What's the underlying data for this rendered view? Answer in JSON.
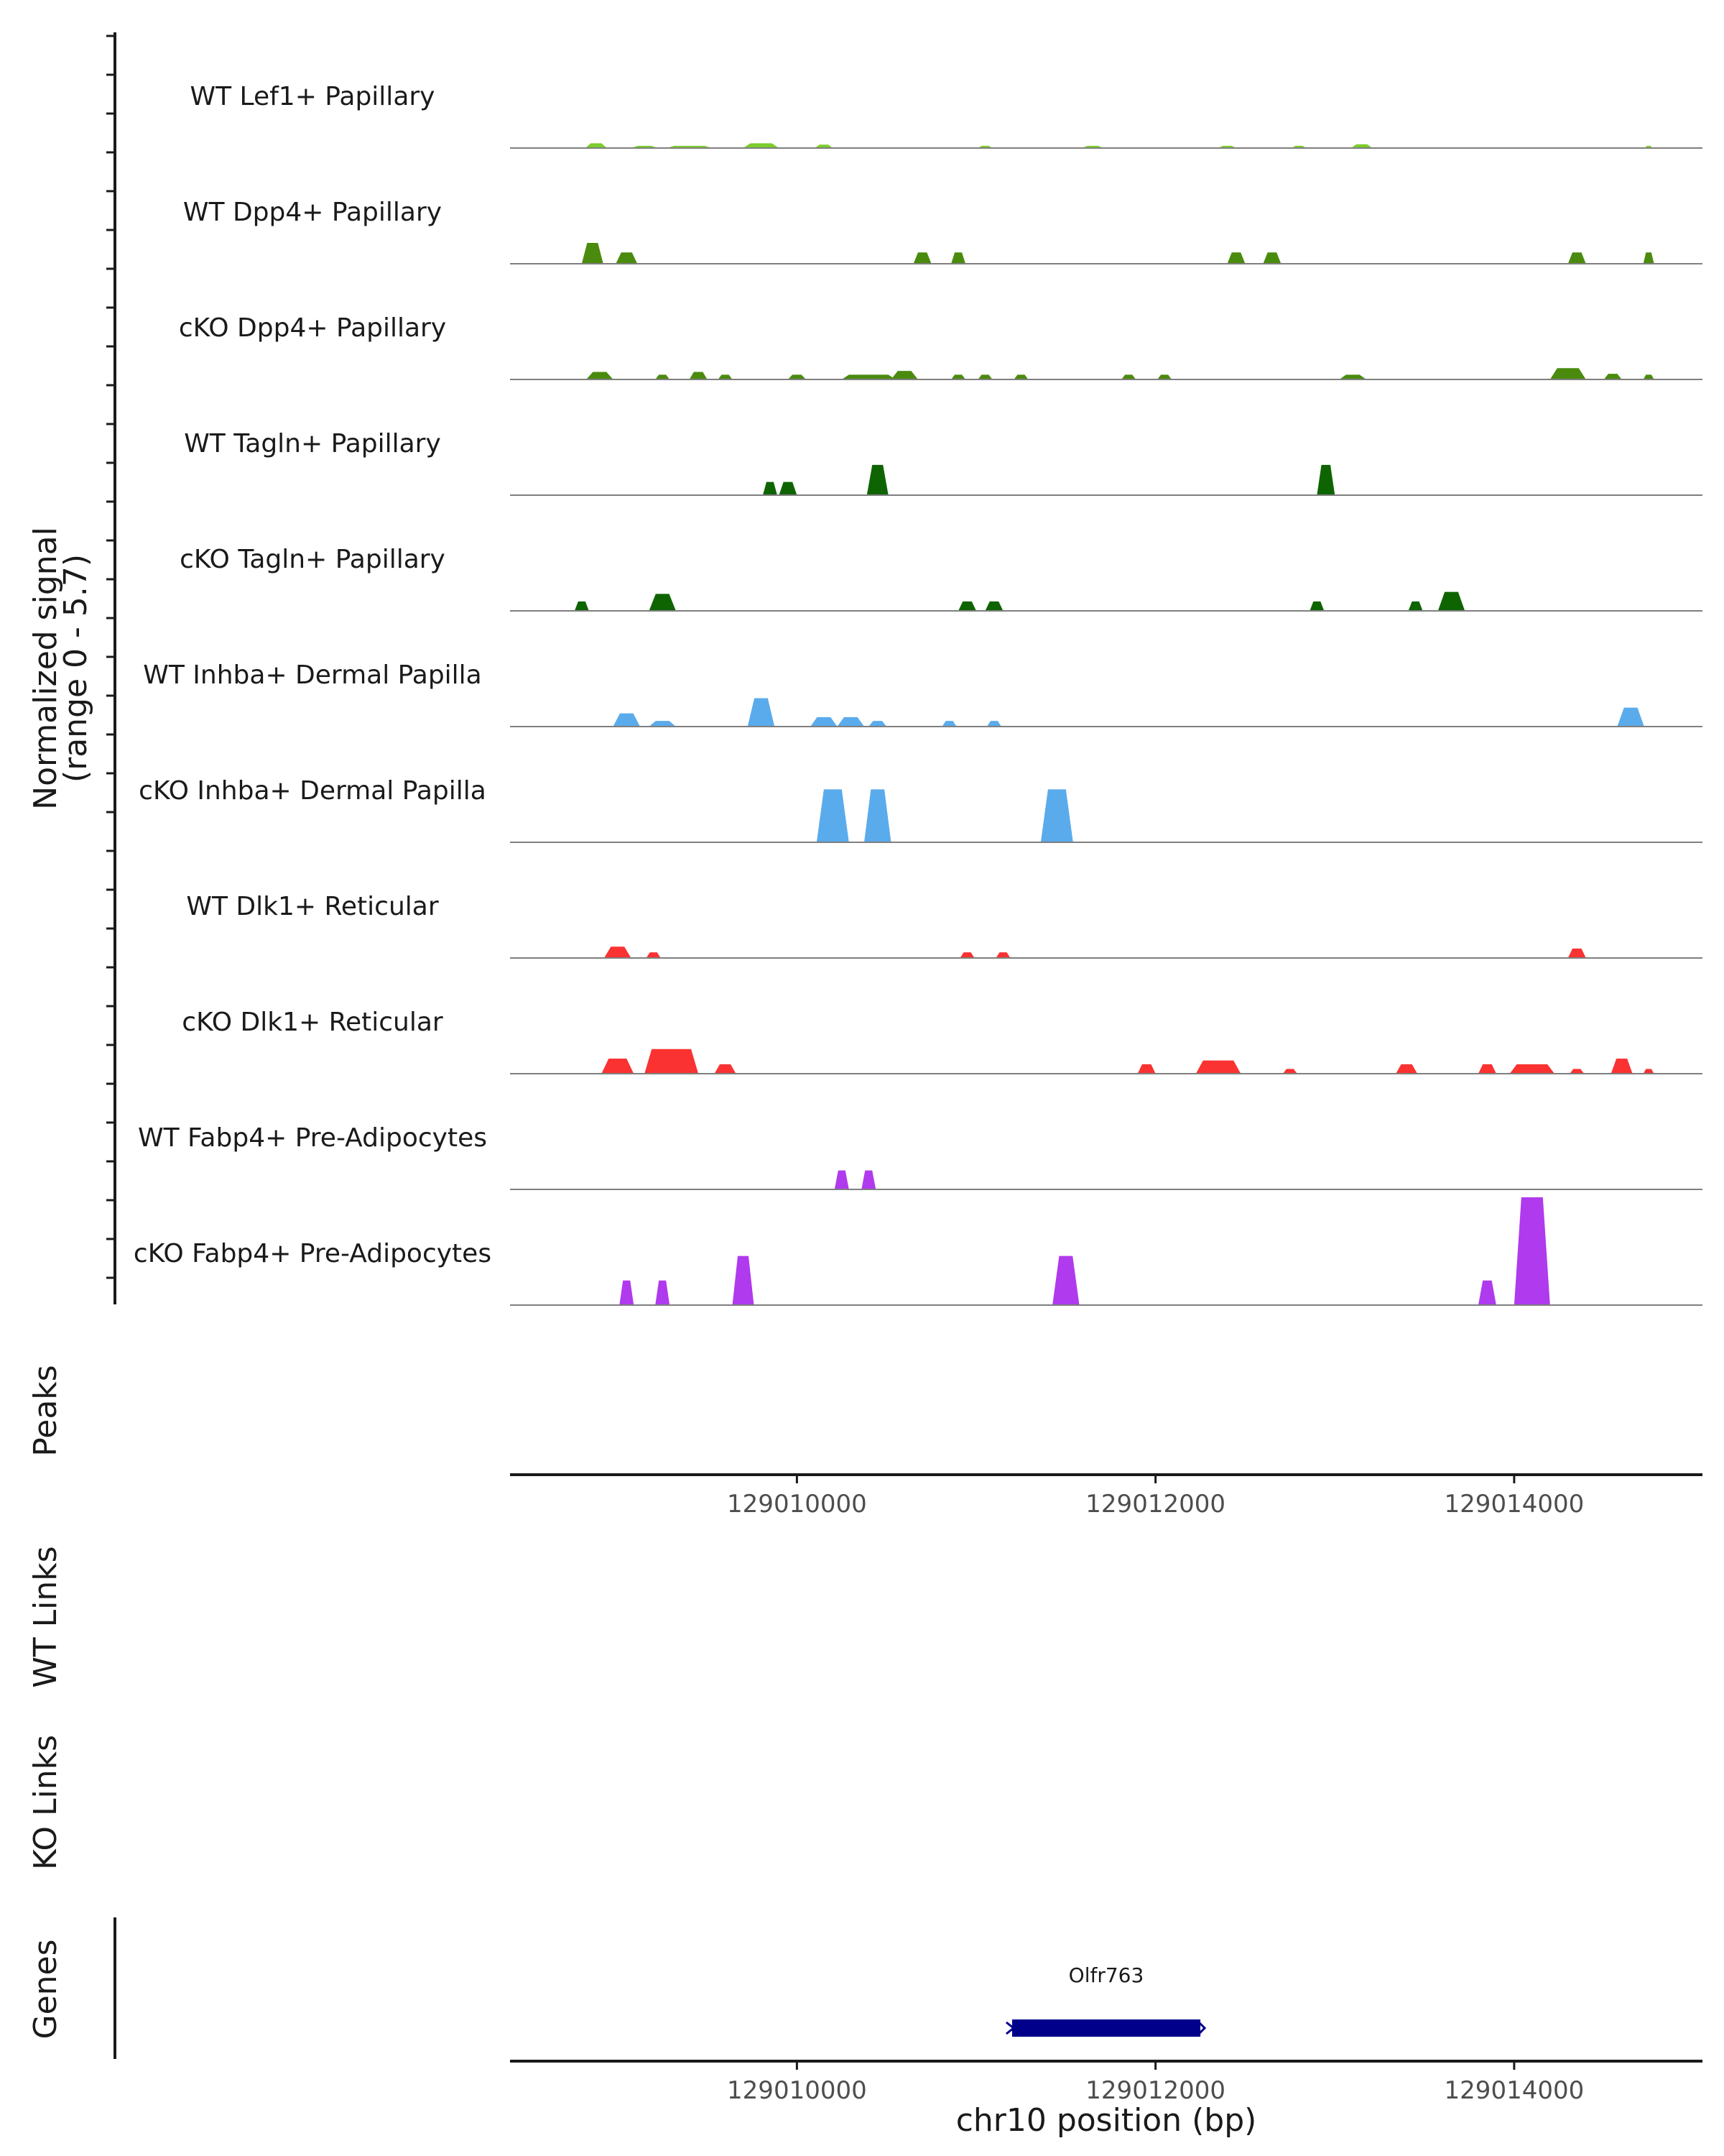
{
  "chart_data": {
    "type": "area",
    "description_free": true,
    "region": {
      "chrom": "chr10",
      "start": 129008400,
      "end": 129015050
    },
    "ylabel": "Normalized signal",
    "ylabel_range": "(range 0 - 5.7)",
    "ylim": [
      0,
      5.7
    ],
    "xlabel": "chr10 position (bp)",
    "xticks": [
      129010000,
      129012000,
      129014000
    ],
    "xtick_labels": [
      "129010000",
      "129012000",
      "129014000"
    ],
    "panel_labels": {
      "peaks": "Peaks",
      "wt_links": "WT Links",
      "ko_links": "KO Links",
      "genes": "Genes"
    },
    "tracks": [
      {
        "name": "WT Lef1+ Papillary",
        "color": "#7CCD2B",
        "peaks": [
          [
            129008880,
            120,
            0.25
          ],
          [
            129009150,
            150,
            0.12
          ],
          [
            129009400,
            250,
            0.12
          ],
          [
            129009800,
            200,
            0.25
          ],
          [
            129010150,
            100,
            0.18
          ],
          [
            129011050,
            80,
            0.12
          ],
          [
            129011650,
            120,
            0.12
          ],
          [
            129012400,
            100,
            0.12
          ],
          [
            129012800,
            80,
            0.12
          ],
          [
            129013150,
            120,
            0.2
          ],
          [
            129014750,
            40,
            0.12
          ]
        ]
      },
      {
        "name": "WT Dpp4+ Papillary",
        "color": "#4A8B0E",
        "peaks": [
          [
            129008860,
            120,
            1.1
          ],
          [
            129009050,
            120,
            0.6
          ],
          [
            129010700,
            100,
            0.6
          ],
          [
            129010900,
            80,
            0.6
          ],
          [
            129012450,
            100,
            0.6
          ],
          [
            129012650,
            100,
            0.6
          ],
          [
            129014350,
            100,
            0.6
          ],
          [
            129014750,
            60,
            0.6
          ]
        ]
      },
      {
        "name": "cKO Dpp4+ Papillary",
        "color": "#4A8B0E",
        "peaks": [
          [
            129008900,
            150,
            0.4
          ],
          [
            129009250,
            80,
            0.25
          ],
          [
            129009450,
            100,
            0.4
          ],
          [
            129009600,
            80,
            0.25
          ],
          [
            129010000,
            100,
            0.25
          ],
          [
            129010400,
            300,
            0.25
          ],
          [
            129010600,
            150,
            0.45
          ],
          [
            129010900,
            80,
            0.25
          ],
          [
            129011050,
            80,
            0.25
          ],
          [
            129011250,
            80,
            0.25
          ],
          [
            129011850,
            80,
            0.25
          ],
          [
            129012050,
            80,
            0.25
          ],
          [
            129013100,
            150,
            0.25
          ],
          [
            129014300,
            200,
            0.6
          ],
          [
            129014550,
            100,
            0.3
          ],
          [
            129014750,
            60,
            0.25
          ]
        ]
      },
      {
        "name": "WT Tagln+ Papillary",
        "color": "#0E6400",
        "peaks": [
          [
            129009850,
            80,
            0.7
          ],
          [
            129009950,
            100,
            0.7
          ],
          [
            129010450,
            120,
            1.6
          ],
          [
            129012950,
            100,
            1.6
          ]
        ]
      },
      {
        "name": "cKO Tagln+ Papillary",
        "color": "#0E6400",
        "peaks": [
          [
            129008800,
            80,
            0.5
          ],
          [
            129009250,
            150,
            0.9
          ],
          [
            129010950,
            100,
            0.5
          ],
          [
            129011100,
            100,
            0.5
          ],
          [
            129012900,
            80,
            0.5
          ],
          [
            129013450,
            80,
            0.5
          ],
          [
            129013650,
            150,
            1.0
          ]
        ]
      },
      {
        "name": "WT Inhba+ Dermal Papilla",
        "color": "#5AABEC",
        "peaks": [
          [
            129009050,
            150,
            0.7
          ],
          [
            129009250,
            150,
            0.3
          ],
          [
            129009800,
            150,
            1.5
          ],
          [
            129010150,
            150,
            0.5
          ],
          [
            129010300,
            150,
            0.5
          ],
          [
            129010450,
            100,
            0.3
          ],
          [
            129010850,
            80,
            0.3
          ],
          [
            129011100,
            80,
            0.3
          ],
          [
            129014650,
            150,
            1.0
          ]
        ]
      },
      {
        "name": "cKO Inhba+ Dermal Papilla",
        "color": "#5AABEC",
        "peaks": [
          [
            129010200,
            180,
            2.8
          ],
          [
            129010450,
            150,
            2.8
          ],
          [
            129011450,
            180,
            2.8
          ]
        ]
      },
      {
        "name": "WT Dlk1+ Reticular",
        "color": "#FA3232",
        "peaks": [
          [
            129009000,
            150,
            0.6
          ],
          [
            129009200,
            80,
            0.3
          ],
          [
            129010950,
            80,
            0.3
          ],
          [
            129011150,
            80,
            0.3
          ],
          [
            129014350,
            100,
            0.5
          ]
        ]
      },
      {
        "name": "cKO Dlk1+ Reticular",
        "color": "#FA3232",
        "peaks": [
          [
            129009000,
            180,
            0.8
          ],
          [
            129009300,
            300,
            1.3
          ],
          [
            129009600,
            120,
            0.5
          ],
          [
            129011950,
            100,
            0.5
          ],
          [
            129012350,
            250,
            0.7
          ],
          [
            129012750,
            80,
            0.25
          ],
          [
            129013400,
            120,
            0.5
          ],
          [
            129013850,
            100,
            0.5
          ],
          [
            129014100,
            250,
            0.5
          ],
          [
            129014350,
            80,
            0.25
          ],
          [
            129014600,
            120,
            0.8
          ],
          [
            129014750,
            60,
            0.25
          ]
        ]
      },
      {
        "name": "WT Fabp4+ Pre-Adipocytes",
        "color": "#B03AEE",
        "peaks": [
          [
            129010250,
            80,
            1.0
          ],
          [
            129010400,
            80,
            1.0
          ]
        ]
      },
      {
        "name": "cKO Fabp4+ Pre-Adipocytes",
        "color": "#B03AEE",
        "peaks": [
          [
            129009050,
            80,
            1.3
          ],
          [
            129009250,
            80,
            1.3
          ],
          [
            129009700,
            120,
            2.6
          ],
          [
            129011500,
            150,
            2.6
          ],
          [
            129013850,
            100,
            1.3
          ],
          [
            129014100,
            200,
            5.7
          ]
        ]
      }
    ],
    "genes": [
      {
        "name": "Olfr763",
        "start": 129011200,
        "end": 129012250,
        "strand": "-",
        "color": "#00008B"
      }
    ]
  }
}
